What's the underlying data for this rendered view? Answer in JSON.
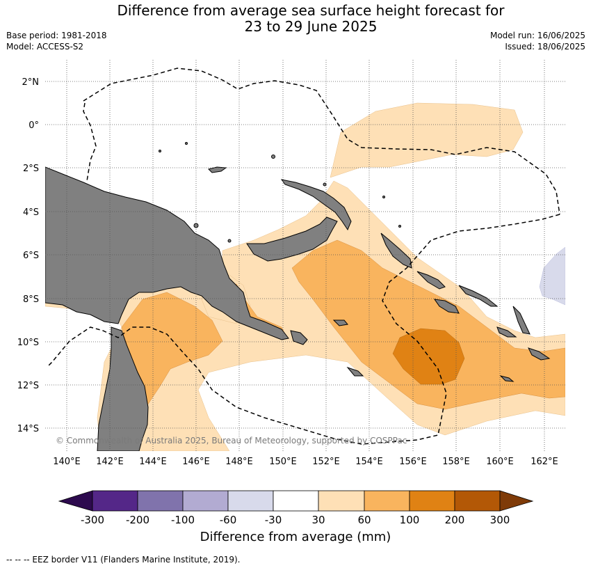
{
  "title": {
    "line1": "Difference from average sea surface height forecast for",
    "line2": "23 to 29 June 2025"
  },
  "meta": {
    "base_period": "Base period: 1981-2018",
    "model": "Model: ACCESS-S2",
    "model_run": "Model run: 16/06/2025",
    "issued": "Issued: 18/06/2025"
  },
  "axes": {
    "lat_labels": [
      "2°N",
      "0°",
      "2°S",
      "4°S",
      "6°S",
      "8°S",
      "10°S",
      "12°S",
      "14°S"
    ],
    "lon_labels": [
      "140°E",
      "142°E",
      "144°E",
      "146°E",
      "148°E",
      "150°E",
      "152°E",
      "154°E",
      "156°E",
      "158°E",
      "160°E",
      "162°E"
    ],
    "grid": "dotted"
  },
  "copyright": "© Commonwealth of Australia 2025, Bureau of Meteorology, supported by COSPPac",
  "colorbar": {
    "ticks": [
      "-300",
      "-200",
      "-100",
      "-60",
      "-30",
      "30",
      "60",
      "100",
      "200",
      "300"
    ],
    "label": "Difference from average (mm)",
    "colors": {
      "below_-300": "#2d0a4e",
      "-300_-200": "#542788",
      "-200_-100": "#8073ac",
      "-100_-60": "#b2abd2",
      "-60_-30": "#d8daeb",
      "-30_30": "#ffffff",
      "30_60": "#fee0b6",
      "60_100": "#f9b45e",
      "100_200": "#e08214",
      "200_300": "#b35806",
      "above_300": "#7f3b08"
    }
  },
  "land_color": "#808080",
  "footer": "--  --  -- EEZ border V11 (Flanders Marine Institute, 2019)."
}
